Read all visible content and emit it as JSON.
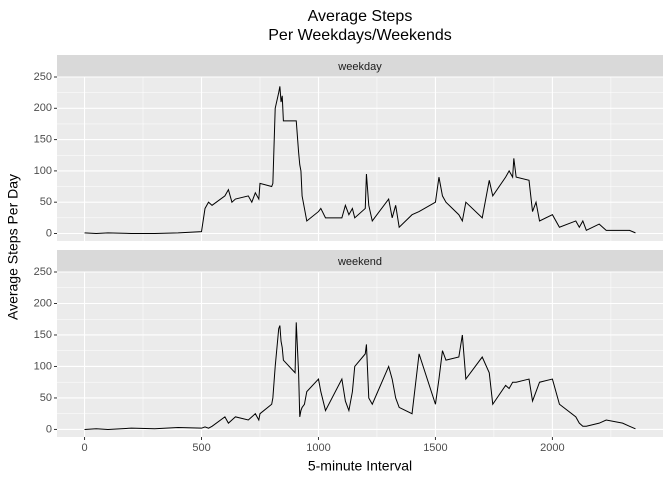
{
  "chart_data": {
    "type": "line",
    "title_lines": [
      "Average Steps",
      "Per Weekdays/Weekends"
    ],
    "x_label": "5-minute Interval",
    "y_label": "Average Steps Per Day",
    "x": [
      0,
      50,
      100,
      200,
      300,
      400,
      500,
      515,
      530,
      545,
      600,
      615,
      630,
      645,
      700,
      715,
      730,
      745,
      750,
      800,
      805,
      815,
      830,
      835,
      840,
      845,
      850,
      900,
      905,
      915,
      920,
      925,
      930,
      940,
      950,
      1000,
      1010,
      1030,
      1100,
      1115,
      1130,
      1145,
      1155,
      1200,
      1205,
      1215,
      1230,
      1300,
      1315,
      1330,
      1345,
      1400,
      1430,
      1500,
      1515,
      1530,
      1545,
      1600,
      1615,
      1630,
      1700,
      1730,
      1745,
      1800,
      1815,
      1830,
      1835,
      1845,
      1900,
      1915,
      1930,
      1945,
      2000,
      2030,
      2100,
      2115,
      2130,
      2145,
      2200,
      2230,
      2300,
      2330,
      2355
    ],
    "series": [
      {
        "name": "weekday",
        "color": "#000000",
        "values": [
          1,
          0,
          1,
          0,
          0,
          1,
          3,
          40,
          50,
          45,
          60,
          70,
          50,
          55,
          60,
          50,
          65,
          55,
          80,
          75,
          80,
          200,
          225,
          235,
          210,
          220,
          180,
          180,
          180,
          130,
          110,
          100,
          60,
          40,
          20,
          35,
          40,
          25,
          25,
          45,
          30,
          40,
          25,
          40,
          95,
          45,
          20,
          55,
          25,
          45,
          10,
          30,
          35,
          50,
          90,
          60,
          50,
          30,
          20,
          50,
          25,
          85,
          60,
          90,
          100,
          90,
          120,
          90,
          85,
          35,
          50,
          20,
          30,
          10,
          20,
          10,
          20,
          5,
          15,
          5,
          5,
          5,
          1
        ]
      },
      {
        "name": "weekend",
        "color": "#000000",
        "values": [
          0,
          1,
          0,
          2,
          1,
          3,
          2,
          4,
          2,
          5,
          20,
          10,
          15,
          20,
          15,
          20,
          25,
          15,
          25,
          40,
          50,
          100,
          160,
          165,
          140,
          130,
          110,
          90,
          170,
          90,
          20,
          30,
          35,
          40,
          60,
          80,
          60,
          30,
          80,
          45,
          30,
          60,
          100,
          120,
          135,
          50,
          40,
          100,
          80,
          50,
          35,
          25,
          120,
          40,
          80,
          125,
          110,
          115,
          150,
          80,
          115,
          90,
          40,
          70,
          65,
          75,
          75,
          75,
          80,
          45,
          60,
          75,
          80,
          40,
          20,
          10,
          5,
          5,
          10,
          15,
          10,
          5,
          1
        ]
      }
    ],
    "xlim": [
      -117.75,
      2472.75
    ],
    "xticks": [
      0,
      500,
      1000,
      1500,
      2000
    ],
    "ylim": [
      -12,
      250
    ],
    "yticks": [
      0,
      50,
      100,
      150,
      200,
      250
    ],
    "grid": true
  }
}
